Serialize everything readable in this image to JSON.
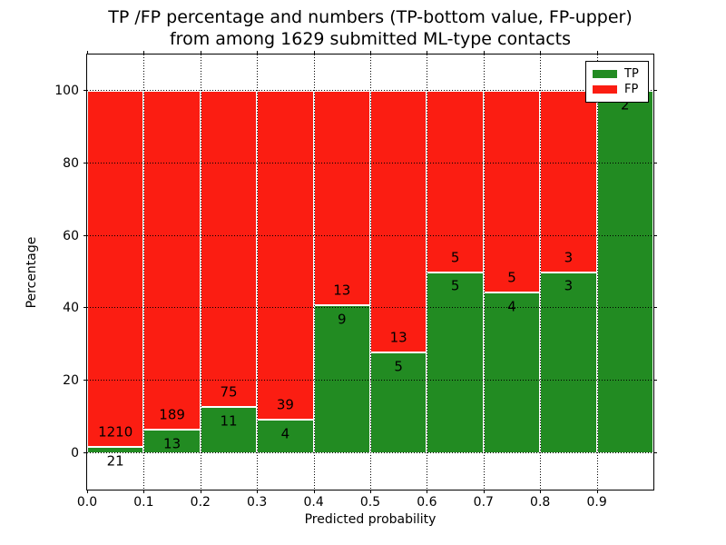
{
  "title": {
    "line1": "TP /FP percentage and numbers (TP-bottom value, FP-upper)",
    "line2": "from among 1629 submitted ML-type contacts"
  },
  "axes": {
    "xlabel": "Predicted probability",
    "ylabel": "Percentage",
    "xtick_labels": [
      "0.0",
      "0.1",
      "0.2",
      "0.3",
      "0.4",
      "0.5",
      "0.6",
      "0.7",
      "0.8",
      "0.9"
    ],
    "ytick_labels": [
      "0",
      "20",
      "40",
      "60",
      "80",
      "100"
    ],
    "ytick_values": [
      0,
      20,
      40,
      60,
      80,
      100
    ]
  },
  "legend": {
    "position": "upper right",
    "items": [
      {
        "label": "TP",
        "color": "#228b22"
      },
      {
        "label": "FP",
        "color": "#fb1d12"
      }
    ]
  },
  "colors": {
    "tp": "#228b22",
    "fp": "#fb1d12",
    "bar_edge": "#ffffff",
    "grid": "#000000"
  },
  "chart_data": {
    "type": "bar",
    "variant": "stacked-percentage-histogram",
    "title": "TP /FP percentage and numbers (TP-bottom value, FP-upper) from among 1629 submitted ML-type contacts",
    "xlabel": "Predicted probability",
    "ylabel": "Percentage",
    "xlim": [
      0.0,
      1.0
    ],
    "ylim": [
      -10,
      110
    ],
    "grid": true,
    "grid_style": "dotted",
    "legend_position": "upper right",
    "bin_edges": [
      0.0,
      0.1,
      0.2,
      0.3,
      0.4,
      0.5,
      0.6,
      0.7,
      0.8,
      0.9,
      1.0
    ],
    "categories": [
      "0.0-0.1",
      "0.1-0.2",
      "0.2-0.3",
      "0.3-0.4",
      "0.4-0.5",
      "0.5-0.6",
      "0.6-0.7",
      "0.7-0.8",
      "0.8-0.9",
      "0.9-1.0"
    ],
    "total_contacts": 1629,
    "series": [
      {
        "name": "TP",
        "color": "#228b22",
        "counts": [
          21,
          13,
          11,
          4,
          9,
          5,
          5,
          4,
          3,
          2
        ],
        "percent": [
          1.71,
          6.44,
          12.79,
          9.3,
          40.91,
          27.78,
          50.0,
          44.44,
          50.0,
          100.0
        ]
      },
      {
        "name": "FP",
        "color": "#fb1d12",
        "counts": [
          1210,
          189,
          75,
          39,
          13,
          13,
          5,
          5,
          3,
          0
        ],
        "percent": [
          98.29,
          93.56,
          87.21,
          90.7,
          59.09,
          72.22,
          50.0,
          55.56,
          50.0,
          0.0
        ]
      }
    ]
  }
}
